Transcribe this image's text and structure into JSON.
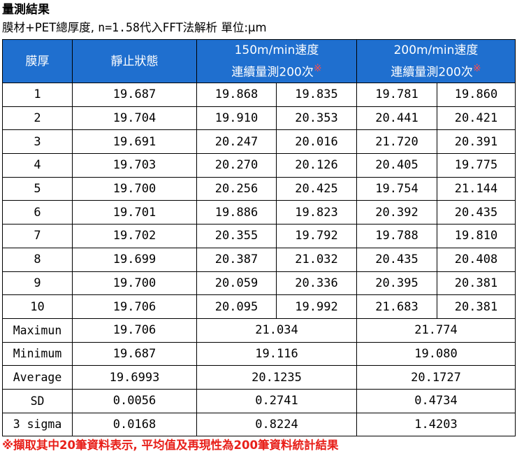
{
  "title": "量測結果",
  "subtitle": {
    "prefix": "膜材+PET總厚度, ",
    "formula": "n=1.58",
    "suffix": "代入FFT法解析 單位:μm"
  },
  "table": {
    "headers": {
      "thickness": "膜厚",
      "static": "靜止狀態",
      "speed150_line1": "150m/min速度",
      "speed150_line2": "連續量測200次",
      "speed200_line1": "200m/min速度",
      "speed200_line2": "連續量測200次",
      "star": "※"
    },
    "rows": [
      {
        "n": "1",
        "static": "19.687",
        "s150a": "19.868",
        "s150b": "19.835",
        "s200a": "19.781",
        "s200b": "19.860"
      },
      {
        "n": "2",
        "static": "19.704",
        "s150a": "19.910",
        "s150b": "20.353",
        "s200a": "20.441",
        "s200b": "20.421"
      },
      {
        "n": "3",
        "static": "19.691",
        "s150a": "20.247",
        "s150b": "20.016",
        "s200a": "21.720",
        "s200b": "20.391"
      },
      {
        "n": "4",
        "static": "19.703",
        "s150a": "20.270",
        "s150b": "20.126",
        "s200a": "20.405",
        "s200b": "19.775"
      },
      {
        "n": "5",
        "static": "19.700",
        "s150a": "20.256",
        "s150b": "20.425",
        "s200a": "19.754",
        "s200b": "21.144"
      },
      {
        "n": "6",
        "static": "19.701",
        "s150a": "19.886",
        "s150b": "19.823",
        "s200a": "20.392",
        "s200b": "20.435"
      },
      {
        "n": "7",
        "static": "19.702",
        "s150a": "20.355",
        "s150b": "19.792",
        "s200a": "19.788",
        "s200b": "19.810"
      },
      {
        "n": "8",
        "static": "19.699",
        "s150a": "20.387",
        "s150b": "21.032",
        "s200a": "20.435",
        "s200b": "20.408"
      },
      {
        "n": "9",
        "static": "19.700",
        "s150a": "20.059",
        "s150b": "20.336",
        "s200a": "20.395",
        "s200b": "20.381"
      },
      {
        "n": "10",
        "static": "19.706",
        "s150a": "20.095",
        "s150b": "19.992",
        "s200a": "21.683",
        "s200b": "20.381"
      }
    ],
    "stats": [
      {
        "label": "Maximun",
        "static": "19.706",
        "s150": "21.034",
        "s200": "21.774"
      },
      {
        "label": "Minimum",
        "static": "19.687",
        "s150": "19.116",
        "s200": "19.080"
      },
      {
        "label": "Average",
        "static": "19.6993",
        "s150": "20.1235",
        "s200": "20.1727"
      },
      {
        "label": "SD",
        "static": "0.0056",
        "s150": "0.2741",
        "s200": "0.4734"
      },
      {
        "label": "3 sigma",
        "static": "0.0168",
        "s150": "0.8224",
        "s200": "1.4203"
      }
    ]
  },
  "footnote": "※擷取其中20筆資料表示, 平均值及再現性為200筆資料統計結果"
}
